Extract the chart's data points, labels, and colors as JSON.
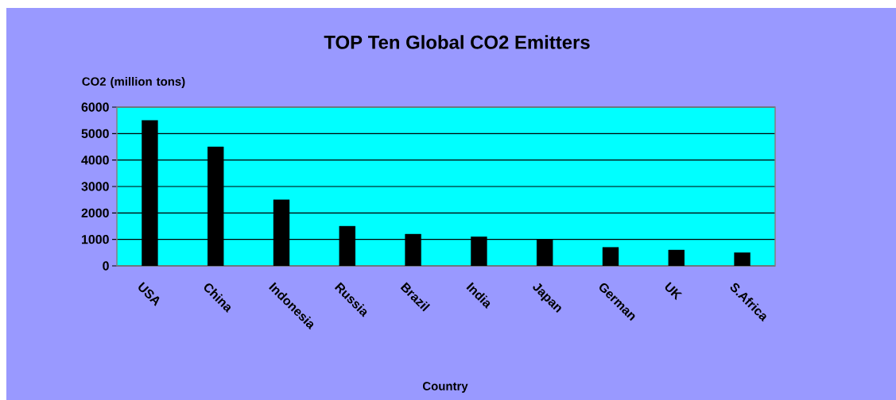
{
  "chart_data": {
    "type": "bar",
    "title": "TOP Ten Global CO2 Emitters",
    "xlabel": "Country",
    "ylabel": "CO2 (million tons)",
    "categories": [
      "USA",
      "China",
      "Indonesia",
      "Russia",
      "Brazil",
      "India",
      "Japan",
      "German",
      "UK",
      "S.Africa"
    ],
    "values": [
      5500,
      4500,
      2500,
      1500,
      1200,
      1100,
      1000,
      700,
      600,
      500
    ],
    "color": "#000000",
    "ylim": [
      0,
      6000
    ],
    "yticks": [
      0,
      1000,
      2000,
      3000,
      4000,
      5000,
      6000
    ],
    "grid": "y"
  }
}
